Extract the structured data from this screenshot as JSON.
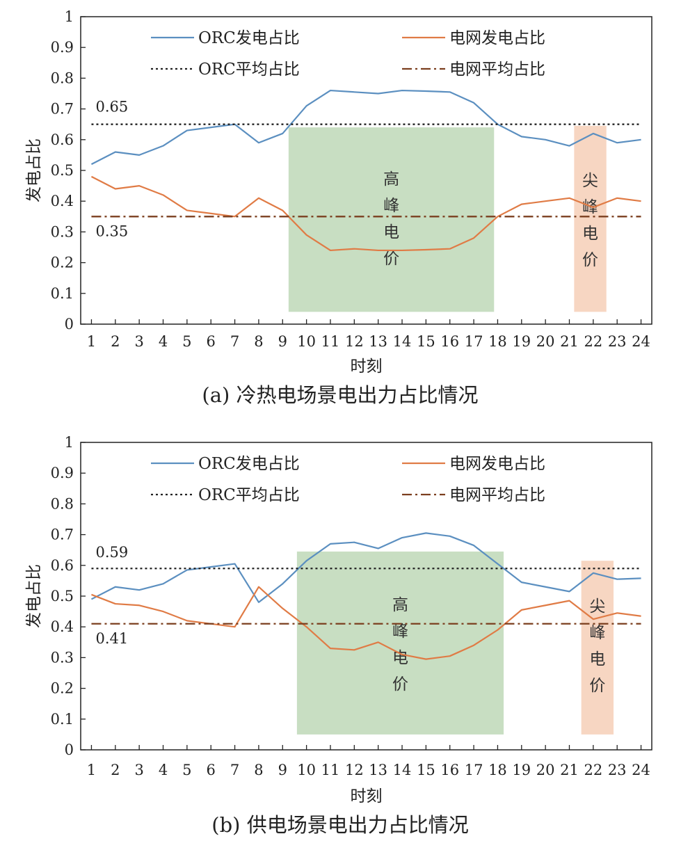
{
  "chart_data": [
    {
      "type": "line",
      "caption": "(a) 冷热电场景电出力占比情况",
      "xlabel": "时刻",
      "ylabel": "发电占比",
      "ylim": [
        0,
        1
      ],
      "yticks": [
        "0",
        "0.1",
        "0.2",
        "0.3",
        "0.4",
        "0.5",
        "0.6",
        "0.7",
        "0.8",
        "0.9",
        "1"
      ],
      "x": [
        1,
        2,
        3,
        4,
        5,
        6,
        7,
        8,
        9,
        10,
        11,
        12,
        13,
        14,
        15,
        16,
        17,
        18,
        19,
        20,
        21,
        22,
        23,
        24
      ],
      "grid": false,
      "legend_position": "top",
      "series": [
        {
          "name": "ORC发电占比",
          "color": "#5b8fc0",
          "style": "solid",
          "values": [
            0.52,
            0.56,
            0.55,
            0.58,
            0.63,
            0.64,
            0.65,
            0.59,
            0.62,
            0.71,
            0.76,
            0.755,
            0.75,
            0.76,
            0.758,
            0.755,
            0.72,
            0.65,
            0.61,
            0.6,
            0.58,
            0.62,
            0.59,
            0.6
          ]
        },
        {
          "name": "电网发电占比",
          "color": "#e07b45",
          "style": "solid",
          "values": [
            0.48,
            0.44,
            0.45,
            0.42,
            0.37,
            0.36,
            0.35,
            0.41,
            0.37,
            0.29,
            0.24,
            0.245,
            0.24,
            0.24,
            0.242,
            0.245,
            0.28,
            0.35,
            0.39,
            0.4,
            0.41,
            0.38,
            0.41,
            0.4
          ]
        },
        {
          "name": "ORC平均占比",
          "color": "#222222",
          "style": "dotted",
          "constant": 0.65,
          "label": "0.65"
        },
        {
          "name": "电网平均占比",
          "color": "#7b3f1f",
          "style": "dashdot",
          "constant": 0.35,
          "label": "0.35"
        }
      ],
      "bands": [
        {
          "label": [
            "高",
            "峰",
            "电",
            "价"
          ],
          "x_from": 9.25,
          "x_to": 17.85,
          "y_from": 0.04,
          "y_to": 0.64,
          "color": "#c8dec2"
        },
        {
          "label": [
            "尖",
            "峰",
            "电",
            "价"
          ],
          "x_from": 21.2,
          "x_to": 22.55,
          "y_from": 0.04,
          "y_to": 0.645,
          "color": "#f7d6c2"
        }
      ]
    },
    {
      "type": "line",
      "caption": "(b) 供电场景电出力占比情况",
      "xlabel": "时刻",
      "ylabel": "发电占比",
      "ylim": [
        0,
        1
      ],
      "yticks": [
        "0",
        "0.1",
        "0.2",
        "0.3",
        "0.4",
        "0.5",
        "0.6",
        "0.7",
        "0.8",
        "0.9",
        "1"
      ],
      "x": [
        1,
        2,
        3,
        4,
        5,
        6,
        7,
        8,
        9,
        10,
        11,
        12,
        13,
        14,
        15,
        16,
        17,
        18,
        19,
        20,
        21,
        22,
        23,
        24
      ],
      "grid": false,
      "legend_position": "top",
      "series": [
        {
          "name": "ORC发电占比",
          "color": "#5b8fc0",
          "style": "solid",
          "values": [
            0.49,
            0.53,
            0.52,
            0.54,
            0.585,
            0.595,
            0.605,
            0.48,
            0.54,
            0.615,
            0.67,
            0.675,
            0.655,
            0.69,
            0.705,
            0.695,
            0.665,
            0.605,
            0.545,
            0.53,
            0.515,
            0.575,
            0.555,
            0.558
          ]
        },
        {
          "name": "电网发电占比",
          "color": "#e07b45",
          "style": "solid",
          "values": [
            0.505,
            0.475,
            0.47,
            0.45,
            0.42,
            0.41,
            0.4,
            0.53,
            0.46,
            0.4,
            0.33,
            0.325,
            0.35,
            0.31,
            0.295,
            0.305,
            0.34,
            0.39,
            0.455,
            0.47,
            0.485,
            0.425,
            0.445,
            0.435
          ]
        },
        {
          "name": "ORC平均占比",
          "color": "#222222",
          "style": "dotted",
          "constant": 0.59,
          "label": "0.59"
        },
        {
          "name": "电网平均占比",
          "color": "#7b3f1f",
          "style": "dashdot",
          "constant": 0.41,
          "label": "0.41"
        }
      ],
      "bands": [
        {
          "label": [
            "高",
            "峰",
            "电",
            "价"
          ],
          "x_from": 9.6,
          "x_to": 18.25,
          "y_from": 0.05,
          "y_to": 0.645,
          "color": "#c8dec2"
        },
        {
          "label": [
            "尖",
            "峰",
            "电",
            "价"
          ],
          "x_from": 21.5,
          "x_to": 22.85,
          "y_from": 0.05,
          "y_to": 0.615,
          "color": "#f7d6c2"
        }
      ]
    }
  ]
}
